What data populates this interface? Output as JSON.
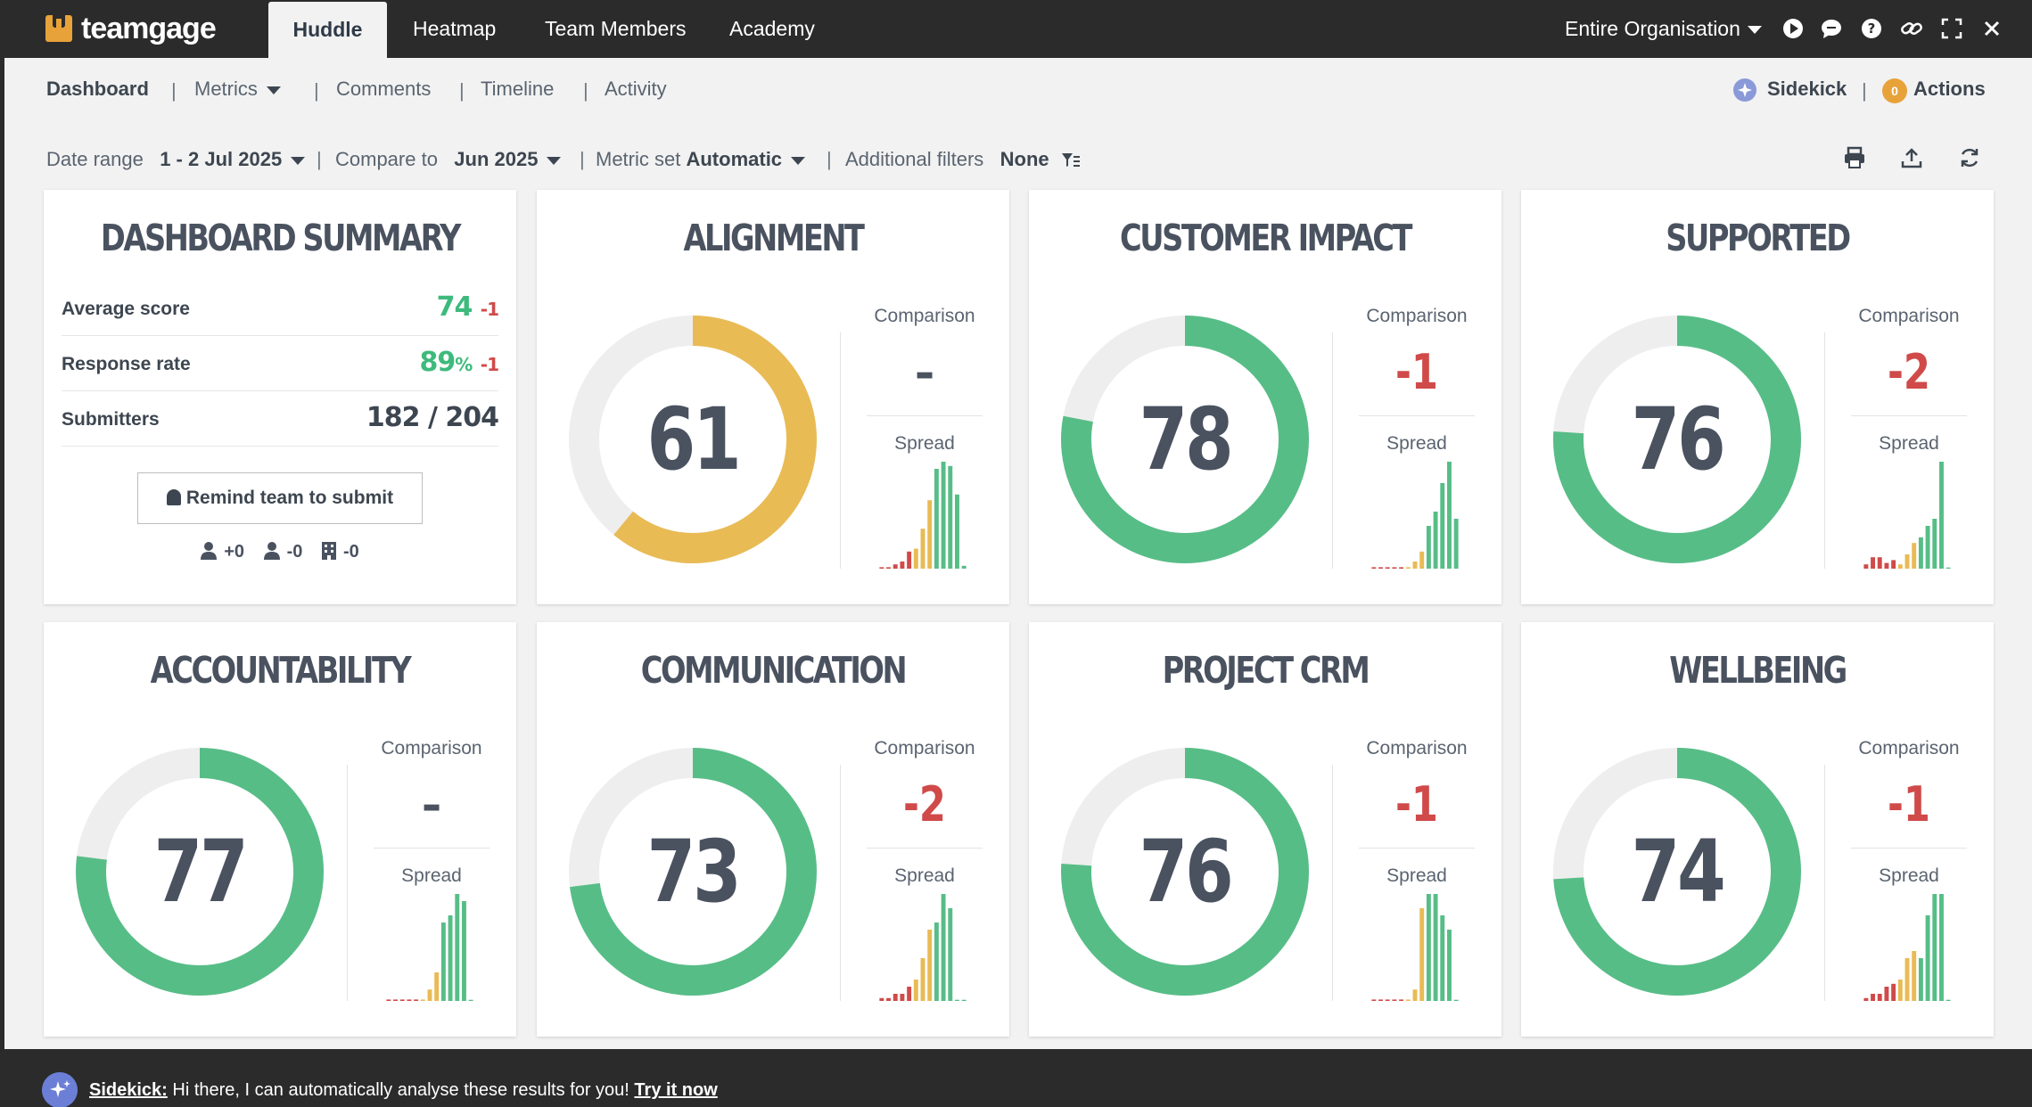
{
  "app": {
    "name": "teamgage"
  },
  "topnav": {
    "tabs": [
      {
        "label": "Huddle",
        "active": true
      },
      {
        "label": "Heatmap"
      },
      {
        "label": "Team Members"
      },
      {
        "label": "Academy"
      }
    ],
    "org_selector": "Entire Organisation",
    "icons": [
      "play-icon",
      "chat-icon",
      "help-icon",
      "link-icon",
      "fullscreen-icon",
      "close-icon"
    ]
  },
  "subnav": {
    "items": [
      "Dashboard",
      "Metrics",
      "Comments",
      "Timeline",
      "Activity"
    ],
    "sidekick": "Sidekick",
    "actions": {
      "label": "Actions",
      "count": "0"
    }
  },
  "filters": {
    "date_range_label": "Date range",
    "date_range_value": "1 - 2 Jul 2025",
    "compare_label": "Compare to",
    "compare_value": "Jun 2025",
    "metric_set_label": "Metric set",
    "metric_set_value": "Automatic",
    "additional_label": "Additional filters",
    "additional_value": "None"
  },
  "summary": {
    "title": "DASHBOARD SUMMARY",
    "rows": [
      {
        "label": "Average score",
        "value": "74",
        "delta": "-1"
      },
      {
        "label": "Response rate",
        "value": "89",
        "unit": "%",
        "delta": "-1"
      },
      {
        "label": "Submitters",
        "value": "182 / 204"
      }
    ],
    "remind_button": "Remind team to submit",
    "stats": [
      "+0",
      "-0",
      "-0"
    ]
  },
  "metric_labels": {
    "comparison": "Comparison",
    "spread": "Spread"
  },
  "metrics": [
    {
      "title": "ALIGNMENT",
      "score": "61",
      "comparison": "–",
      "color": "#e9bb55",
      "spread": [
        1,
        1,
        3,
        5,
        12,
        14,
        28,
        48,
        70,
        75,
        72,
        52,
        2
      ]
    },
    {
      "title": "CUSTOMER IMPACT",
      "score": "78",
      "comparison": "-1",
      "color": "#57bd87",
      "spread": [
        1,
        1,
        1,
        1,
        1,
        1,
        5,
        12,
        30,
        40,
        60,
        75,
        35
      ]
    },
    {
      "title": "SUPPORTED",
      "score": "76",
      "comparison": "-2",
      "color": "#57bd87",
      "spread": [
        3,
        8,
        8,
        4,
        6,
        3,
        10,
        18,
        22,
        30,
        35,
        75,
        0
      ]
    },
    {
      "title": "ACCOUNTABILITY",
      "score": "77",
      "comparison": "–",
      "color": "#57bd87",
      "spread": [
        1,
        1,
        1,
        1,
        1,
        1,
        8,
        20,
        55,
        60,
        75,
        70,
        0
      ]
    },
    {
      "title": "COMMUNICATION",
      "score": "73",
      "comparison": "-2",
      "color": "#57bd87",
      "spread": [
        2,
        2,
        5,
        5,
        10,
        15,
        30,
        50,
        55,
        75,
        65,
        0,
        0
      ]
    },
    {
      "title": "PROJECT CRM",
      "score": "76",
      "comparison": "-1",
      "color": "#57bd87",
      "spread": [
        1,
        1,
        1,
        1,
        1,
        1,
        8,
        65,
        75,
        75,
        60,
        50,
        0
      ]
    },
    {
      "title": "WELLBEING",
      "score": "74",
      "comparison": "-1",
      "color": "#57bd87",
      "spread": [
        2,
        5,
        5,
        10,
        12,
        15,
        30,
        35,
        30,
        60,
        75,
        75,
        0
      ]
    }
  ],
  "bottombar": {
    "prefix": "Sidekick:",
    "message": " Hi there, I can automatically analyse these results for you! ",
    "link": "Try it now"
  }
}
